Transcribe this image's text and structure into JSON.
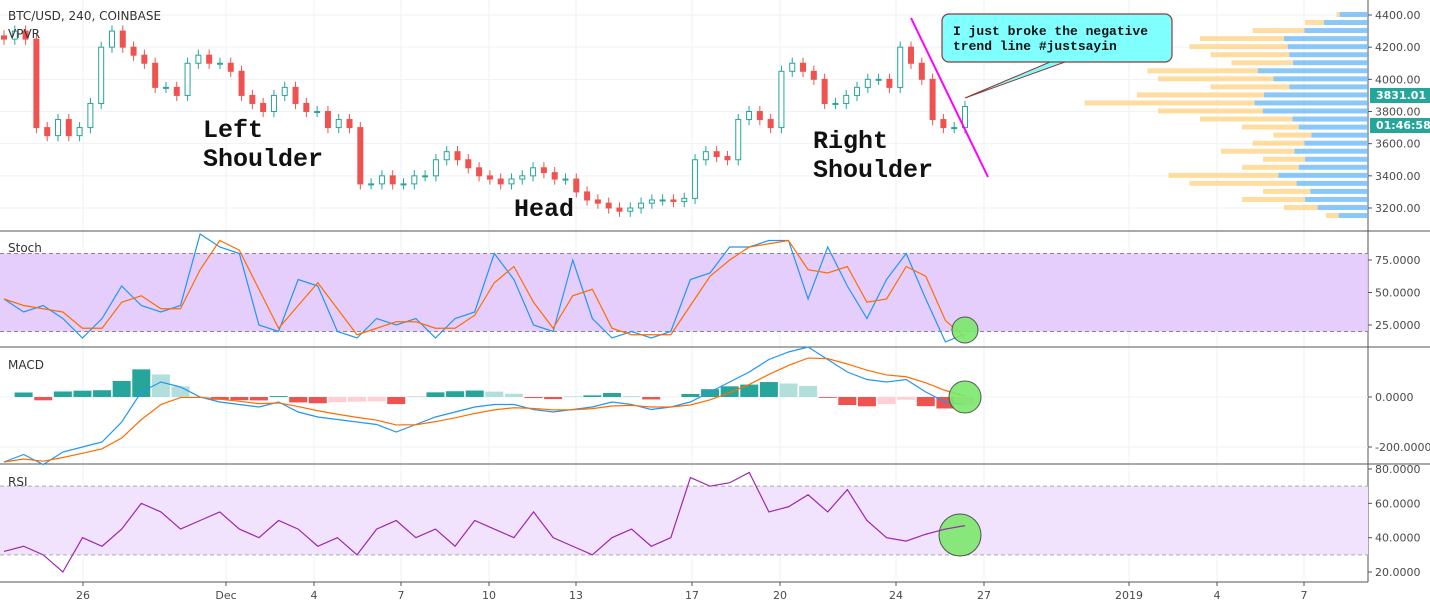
{
  "header": {
    "symbol": "BTC/USD, 240, COINBASE",
    "indicator": "VPVR"
  },
  "annotations": {
    "left_shoulder": [
      "Left",
      "Shoulder"
    ],
    "head": "Head",
    "right_shoulder": [
      "Right",
      "Shoulder"
    ],
    "callout": [
      "I just broke the negative",
      "trend line #justsayin"
    ]
  },
  "colors": {
    "up": "#26a69a",
    "down": "#ef5350",
    "trendline": "#ff00ff",
    "callout_bg": "#80ffff",
    "stoch_band": "#e1c6fb",
    "rsi_band": "#f1e3fd",
    "k": "#2196f3",
    "d": "#ff6d00",
    "rsi": "#9c27b0",
    "circle": "#7ce86c",
    "vp_up": "#64b5f6",
    "vp_down": "#ffd180"
  },
  "chart_data": [
    {
      "type": "candlestick",
      "pane": "price",
      "title": "BTC/USD, 240, COINBASE",
      "ylim": [
        3200,
        4400
      ],
      "yticks": [
        "4400.00",
        "4200.00",
        "4000.00",
        "3800.00",
        "3600.00",
        "3400.00",
        "3200.00"
      ],
      "xticks": [
        "26",
        "Dec",
        "4",
        "7",
        "10",
        "13",
        "17",
        "20",
        "24",
        "27",
        "2019",
        "4",
        "7"
      ],
      "last_price": "3831.01",
      "countdown": "01:46:58",
      "close": [
        4250,
        4300,
        4250,
        3700,
        3650,
        3750,
        3650,
        3700,
        3850,
        4200,
        4300,
        4200,
        4150,
        4100,
        3950,
        3950,
        3900,
        4100,
        4150,
        4100,
        4100,
        4050,
        3900,
        3850,
        3800,
        3900,
        3950,
        3850,
        3800,
        3800,
        3700,
        3750,
        3700,
        3350,
        3350,
        3400,
        3350,
        3350,
        3400,
        3400,
        3500,
        3550,
        3500,
        3450,
        3400,
        3380,
        3350,
        3380,
        3400,
        3450,
        3420,
        3380,
        3380,
        3300,
        3250,
        3230,
        3200,
        3180,
        3200,
        3230,
        3250,
        3250,
        3240,
        3260,
        3500,
        3550,
        3520,
        3500,
        3750,
        3800,
        3750,
        3700,
        4050,
        4100,
        4050,
        4000,
        3850,
        3850,
        3900,
        3950,
        4000,
        4000,
        3950,
        4200,
        4100,
        4000,
        3750,
        3700,
        3700,
        3831
      ],
      "volume_profile": {
        "prices": [
          4400,
          4350,
          4300,
          4250,
          4200,
          4150,
          4100,
          4050,
          4000,
          3950,
          3900,
          3850,
          3800,
          3750,
          3700,
          3650,
          3600,
          3550,
          3500,
          3450,
          3400,
          3350,
          3300,
          3250,
          3200,
          3150
        ],
        "total": [
          30,
          60,
          110,
          160,
          170,
          150,
          130,
          210,
          200,
          150,
          220,
          270,
          200,
          160,
          120,
          90,
          110,
          140,
          100,
          120,
          190,
          170,
          100,
          120,
          80,
          40
        ],
        "up_fraction": [
          0.9,
          0.7,
          0.55,
          0.5,
          0.45,
          0.5,
          0.55,
          0.5,
          0.45,
          0.5,
          0.45,
          0.4,
          0.5,
          0.45,
          0.55,
          0.6,
          0.55,
          0.5,
          0.6,
          0.55,
          0.45,
          0.4,
          0.55,
          0.5,
          0.6,
          0.7
        ]
      }
    },
    {
      "type": "line",
      "pane": "stoch",
      "title": "Stoch",
      "ylim": [
        0,
        100
      ],
      "yticks": [
        "75.0000",
        "50.0000",
        "25.0000"
      ],
      "band": [
        20,
        80
      ],
      "k": [
        45,
        35,
        40,
        30,
        15,
        30,
        55,
        40,
        35,
        40,
        95,
        85,
        80,
        25,
        20,
        60,
        55,
        20,
        15,
        30,
        25,
        30,
        15,
        30,
        35,
        80,
        60,
        25,
        20,
        75,
        30,
        15,
        20,
        15,
        20,
        60,
        65,
        85,
        85,
        90,
        90,
        45,
        85,
        55,
        30,
        60,
        80,
        45,
        12,
        18
      ]
    },
    {
      "type": "line",
      "pane": "macd",
      "title": "MACD",
      "ylim": [
        -280,
        150
      ],
      "yticks": [
        "0.0000",
        "-200.0000"
      ],
      "macd": [
        -260,
        -230,
        -270,
        -220,
        -200,
        -180,
        -100,
        20,
        60,
        40,
        0,
        -20,
        -30,
        -40,
        -20,
        -60,
        -80,
        -90,
        -100,
        -110,
        -140,
        -110,
        -80,
        -60,
        -40,
        -30,
        -30,
        -50,
        -60,
        -50,
        -40,
        -20,
        -30,
        -50,
        -40,
        -20,
        20,
        60,
        100,
        150,
        180,
        200,
        150,
        100,
        70,
        60,
        70,
        20,
        -20,
        -30
      ]
    },
    {
      "type": "line",
      "pane": "rsi",
      "title": "RSI",
      "ylim": [
        15,
        82
      ],
      "yticks": [
        "80.0000",
        "60.0000",
        "40.0000",
        "20.0000"
      ],
      "band": [
        30,
        70
      ],
      "rsi": [
        32,
        35,
        30,
        20,
        40,
        35,
        45,
        60,
        55,
        45,
        50,
        55,
        45,
        40,
        50,
        45,
        35,
        40,
        30,
        45,
        50,
        40,
        45,
        35,
        50,
        45,
        40,
        55,
        40,
        35,
        30,
        40,
        45,
        35,
        40,
        75,
        70,
        72,
        78,
        55,
        58,
        65,
        55,
        68,
        50,
        40,
        38,
        42,
        45,
        47
      ]
    }
  ]
}
